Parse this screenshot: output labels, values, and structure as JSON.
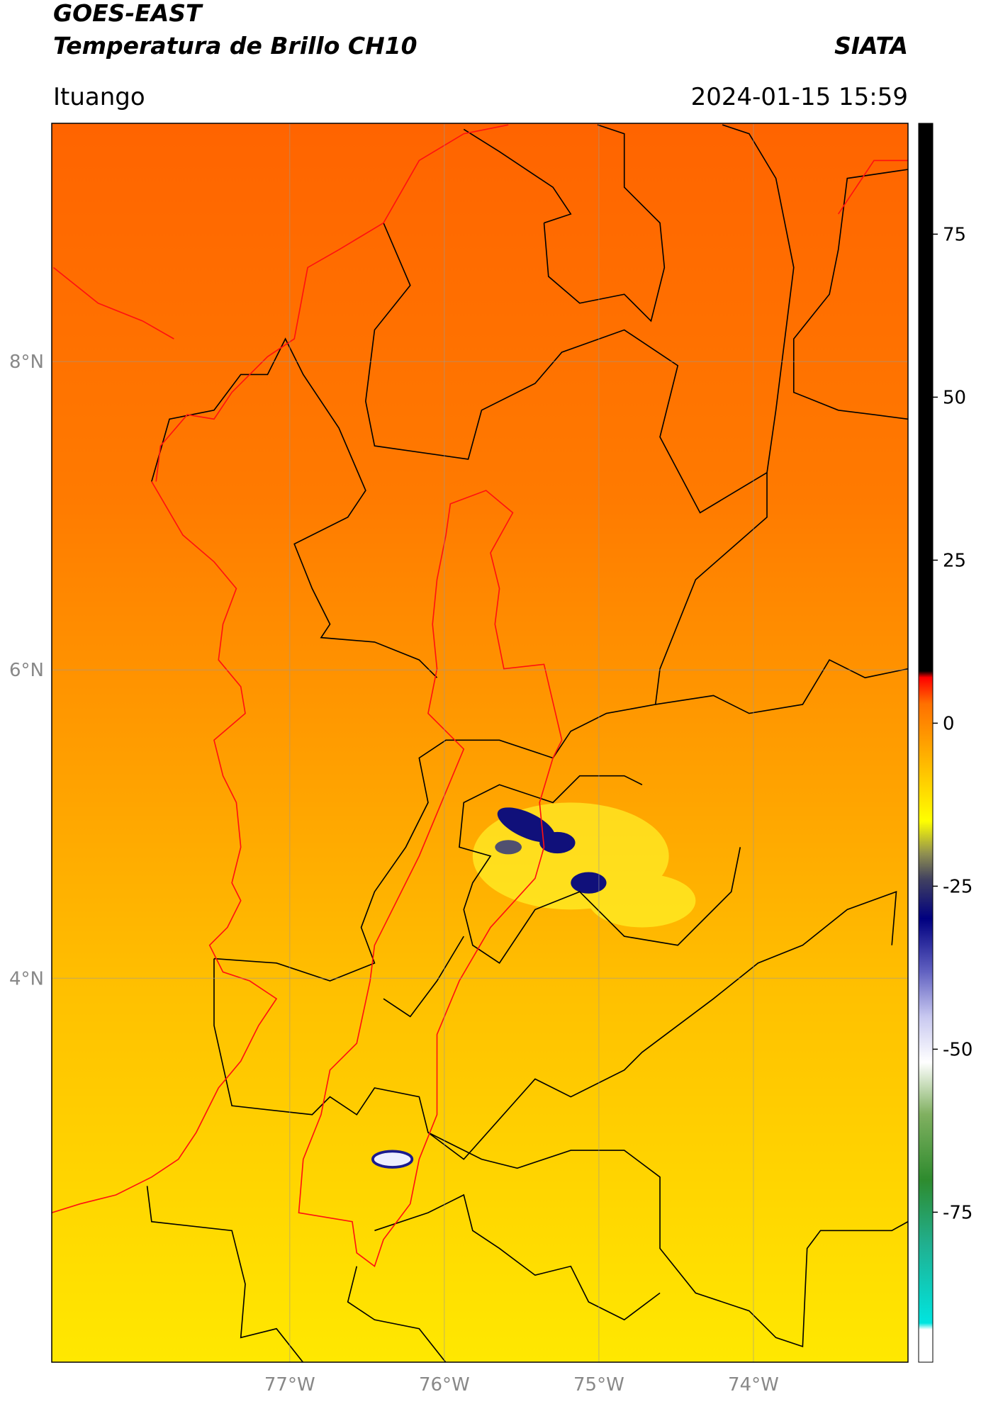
{
  "header": {
    "title": "GOES-EAST",
    "subtitle": "Temperatura de Brillo CH10",
    "source": "SIATA",
    "location": "Ituango",
    "timestamp": "2024-01-15 15:59"
  },
  "chart_data": {
    "type": "map",
    "xlim": [
      -78.54,
      -73.0
    ],
    "ylim": [
      1.51,
      9.545
    ],
    "xticks": [
      {
        "value": -77,
        "label": "77°W"
      },
      {
        "value": -76,
        "label": "76°W"
      },
      {
        "value": -75,
        "label": "75°W"
      },
      {
        "value": -74,
        "label": "74°W"
      }
    ],
    "yticks": [
      {
        "value": 8,
        "label": "8°N"
      },
      {
        "value": 6,
        "label": "6°N"
      },
      {
        "value": 4,
        "label": "4°N"
      }
    ],
    "grid": true,
    "colorbar": {
      "lim": [
        -98,
        92
      ],
      "ticks": [
        -75,
        -50,
        -25,
        0,
        25,
        50,
        75
      ],
      "stops": [
        {
          "value": -98,
          "color": "#ffffff"
        },
        {
          "value": -93,
          "color": "#ffffff"
        },
        {
          "value": -92,
          "color": "#00e5e0"
        },
        {
          "value": -80,
          "color": "#20b090"
        },
        {
          "value": -70,
          "color": "#2e8b2e"
        },
        {
          "value": -60,
          "color": "#80b060"
        },
        {
          "value": -52,
          "color": "#ffffff"
        },
        {
          "value": -45,
          "color": "#c8c8f0"
        },
        {
          "value": -38,
          "color": "#6060c0"
        },
        {
          "value": -30,
          "color": "#000080"
        },
        {
          "value": -24,
          "color": "#404060"
        },
        {
          "value": -20,
          "color": "#909050"
        },
        {
          "value": -15,
          "color": "#ffff00"
        },
        {
          "value": -5,
          "color": "#ffb000"
        },
        {
          "value": 3,
          "color": "#ff7000"
        },
        {
          "value": 7,
          "color": "#ff0000"
        },
        {
          "value": 8,
          "color": "#000000"
        },
        {
          "value": 92,
          "color": "#000000"
        }
      ]
    }
  }
}
